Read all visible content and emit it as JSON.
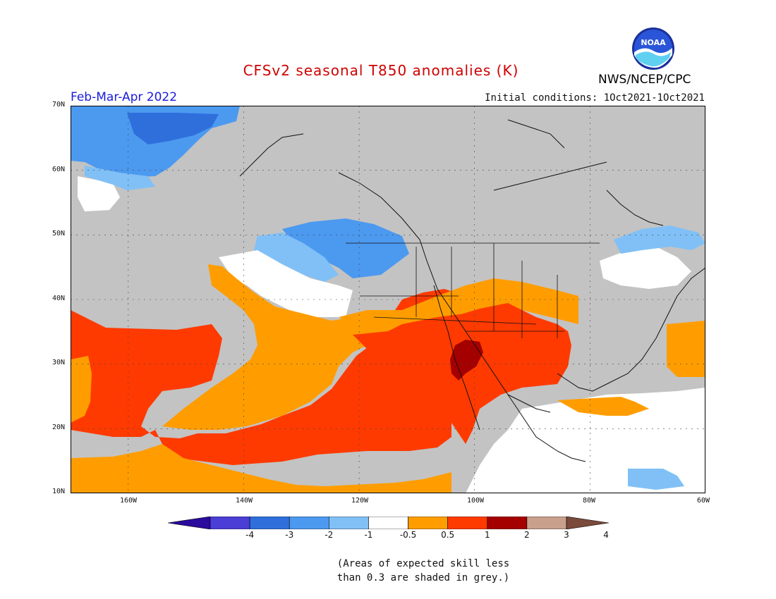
{
  "title": "CFSv2 seasonal T850 anomalies (K)",
  "period": "Feb-Mar-Apr 2022",
  "initial_conditions": "Initial conditions: 1Oct2021-1Oct2021",
  "organization": "NWS/NCEP/CPC",
  "logo_text": "NOAA",
  "map": {
    "lat_ticks": [
      "10N",
      "20N",
      "30N",
      "40N",
      "50N",
      "60N",
      "70N"
    ],
    "lon_ticks": [
      "160W",
      "140W",
      "120W",
      "100W",
      "80W",
      "60W"
    ],
    "lon_range": [
      -170,
      -60
    ],
    "lat_range": [
      10,
      70
    ],
    "grid": true
  },
  "legend": {
    "levels": [
      "-4",
      "-3",
      "-2",
      "-1",
      "-0.5",
      "0.5",
      "1",
      "2",
      "3",
      "4"
    ],
    "colors": [
      "#2b0a9e",
      "#4a3ed6",
      "#2e6fdc",
      "#4c99f0",
      "#80c0f6",
      "#ffffff",
      "#ff9d00",
      "#ff3a00",
      "#a50000",
      "#c8a08c",
      "#7a4a3a"
    ]
  },
  "colors": {
    "grey": "#c3c3c3",
    "white": "#ffffff",
    "orange": "#ff9d00",
    "red": "#ff3a00",
    "darkred": "#a50000",
    "lightblue": "#80c0f6",
    "blue": "#4c99f0",
    "darkblue": "#2e6fdc"
  },
  "footnote": {
    "line1": "(Areas of expected skill less",
    "line2": "than 0.3 are shaded in grey.)"
  }
}
